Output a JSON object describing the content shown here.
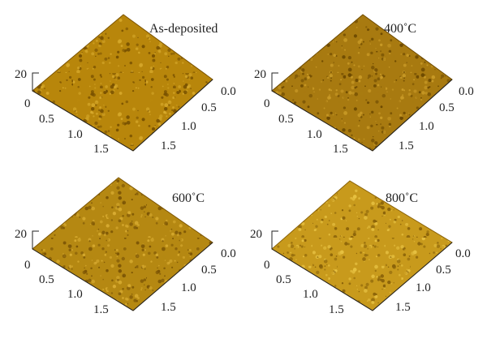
{
  "figure": {
    "panels": [
      {
        "title": "As-deposited",
        "z_tick": "20",
        "origin_label": "0",
        "left_ticks": [
          "0.5",
          "1.0",
          "1.5"
        ],
        "right_ticks": [
          "0.0",
          "0.5",
          "1.0",
          "1.5"
        ],
        "surface_colors": {
          "light": "#d6a82a",
          "mid": "#b8860b",
          "dark": "#7a5200"
        }
      },
      {
        "title": "400˚C",
        "z_tick": "20",
        "origin_label": "0",
        "left_ticks": [
          "0.5",
          "1.0",
          "1.5"
        ],
        "right_ticks": [
          "0.0",
          "0.5",
          "1.0",
          "1.5"
        ],
        "surface_colors": {
          "light": "#c99a26",
          "mid": "#a87a10",
          "dark": "#6e4a00"
        }
      },
      {
        "title": "600˚C",
        "z_tick": "20",
        "origin_label": "0",
        "left_ticks": [
          "0.5",
          "1.0",
          "1.5"
        ],
        "right_ticks": [
          "0.0",
          "0.5",
          "1.0",
          "1.5"
        ],
        "surface_colors": {
          "light": "#d8ab30",
          "mid": "#b58812",
          "dark": "#7c5504"
        }
      },
      {
        "title": "800˚C",
        "z_tick": "20",
        "origin_label": "0",
        "left_ticks": [
          "0.5",
          "1.0",
          "1.5"
        ],
        "right_ticks": [
          "0.0",
          "0.5",
          "1.0",
          "1.5"
        ],
        "surface_colors": {
          "light": "#e6c040",
          "mid": "#c89a1c",
          "dark": "#8a6208"
        }
      }
    ]
  }
}
